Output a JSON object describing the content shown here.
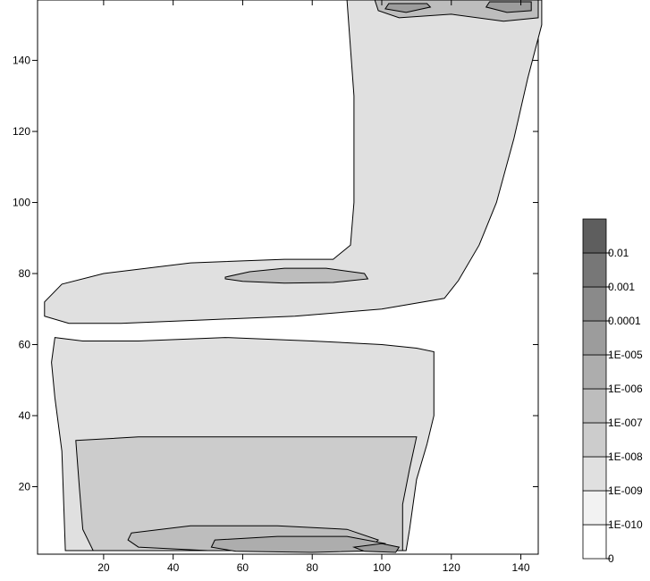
{
  "chart_data": {
    "type": "heatmap",
    "subtype": "filled-contour",
    "title": "",
    "xlabel": "",
    "ylabel": "",
    "xlim": [
      1,
      145
    ],
    "ylim": [
      1,
      157
    ],
    "x_ticks": [
      20,
      40,
      60,
      80,
      100,
      120,
      140
    ],
    "x_tick_labels": [
      "20",
      "40",
      "60",
      "80",
      "100",
      "120",
      "140"
    ],
    "y_ticks": [
      20,
      40,
      60,
      80,
      100,
      120,
      140
    ],
    "y_tick_labels": [
      "20",
      "40",
      "60",
      "80",
      "100",
      "120",
      "140"
    ],
    "colorbar": {
      "levels": [
        "0",
        "1E-010",
        "1E-009",
        "1E-008",
        "1E-007",
        "1E-006",
        "1E-005",
        "0.0001",
        "0.001",
        "0.01"
      ],
      "colors": [
        "#ffffff",
        "#f2f2f2",
        "#e0e0e0",
        "#cccccc",
        "#bdbdbd",
        "#adadad",
        "#9c9c9c",
        "#8a8a8a",
        "#777777",
        "#5e5e5e"
      ]
    },
    "regions": [
      {
        "name": "upper-right-column",
        "level_index": 3,
        "points": [
          [
            93,
            157
          ],
          [
            145,
            157
          ],
          [
            144,
            153
          ],
          [
            140,
            140
          ],
          [
            136,
            122
          ],
          [
            131,
            105
          ],
          [
            126,
            92
          ],
          [
            121,
            83
          ],
          [
            116,
            78
          ],
          [
            108,
            76
          ],
          [
            96,
            75
          ],
          [
            75,
            72
          ],
          [
            50,
            71
          ],
          [
            26,
            70
          ],
          [
            12,
            70
          ],
          [
            7,
            72
          ],
          [
            11,
            76
          ],
          [
            20,
            79
          ],
          [
            40,
            81
          ],
          [
            65,
            82
          ],
          [
            80,
            82
          ],
          [
            89,
            83
          ],
          [
            93,
            87
          ],
          [
            94,
            95
          ],
          [
            95,
            115
          ],
          [
            95,
            140
          ]
        ]
      },
      {
        "name": "upper-light-halo",
        "level_index": 2,
        "points": [
          [
            90,
            157
          ],
          [
            146,
            157
          ],
          [
            146,
            150
          ],
          [
            142,
            135
          ],
          [
            138,
            118
          ],
          [
            133,
            100
          ],
          [
            128,
            88
          ],
          [
            122,
            78
          ],
          [
            118,
            73
          ],
          [
            100,
            70
          ],
          [
            75,
            68
          ],
          [
            50,
            67
          ],
          [
            25,
            66
          ],
          [
            10,
            66
          ],
          [
            3,
            68
          ],
          [
            3,
            72
          ],
          [
            8,
            77
          ],
          [
            20,
            80
          ],
          [
            45,
            83
          ],
          [
            72,
            84
          ],
          [
            86,
            84
          ],
          [
            91,
            88
          ],
          [
            92,
            100
          ],
          [
            92,
            130
          ]
        ]
      },
      {
        "name": "lower-band-light",
        "level_index": 2,
        "points": [
          [
            6,
            62
          ],
          [
            14,
            61
          ],
          [
            30,
            61
          ],
          [
            55,
            62
          ],
          [
            80,
            61
          ],
          [
            100,
            60
          ],
          [
            110,
            59
          ],
          [
            115,
            58
          ],
          [
            115,
            40
          ],
          [
            113,
            32
          ],
          [
            110,
            22
          ],
          [
            108,
            8
          ],
          [
            107,
            2
          ],
          [
            9,
            2
          ],
          [
            8,
            30
          ],
          [
            6,
            45
          ],
          [
            5,
            55
          ]
        ]
      },
      {
        "name": "lower-band-mid",
        "level_index": 3,
        "points": [
          [
            12,
            33
          ],
          [
            30,
            34
          ],
          [
            55,
            34
          ],
          [
            80,
            34
          ],
          [
            100,
            34
          ],
          [
            110,
            34
          ],
          [
            108,
            25
          ],
          [
            106,
            15
          ],
          [
            106,
            2
          ],
          [
            17,
            2
          ],
          [
            14,
            8
          ],
          [
            13,
            20
          ]
        ]
      },
      {
        "name": "lower-inner",
        "level_index": 4,
        "points": [
          [
            28,
            7
          ],
          [
            45,
            9
          ],
          [
            70,
            9
          ],
          [
            90,
            8
          ],
          [
            99,
            5
          ],
          [
            97,
            3
          ],
          [
            85,
            2
          ],
          [
            50,
            2
          ],
          [
            30,
            3
          ],
          [
            27,
            5
          ]
        ]
      },
      {
        "name": "lower-inner-2",
        "level_index": 5,
        "points": [
          [
            52,
            5
          ],
          [
            70,
            6
          ],
          [
            90,
            6
          ],
          [
            101,
            4
          ],
          [
            100,
            2
          ],
          [
            80,
            1.5
          ],
          [
            58,
            1.8
          ],
          [
            51,
            3
          ]
        ]
      },
      {
        "name": "lower-inner-3",
        "level_index": 6,
        "points": [
          [
            92,
            3
          ],
          [
            100,
            4
          ],
          [
            105,
            3
          ],
          [
            104,
            1.5
          ],
          [
            95,
            1.8
          ]
        ]
      },
      {
        "name": "middle-ellipse",
        "level_index": 4,
        "points": [
          [
            55,
            79
          ],
          [
            62,
            80.5
          ],
          [
            72,
            81.5
          ],
          [
            84,
            81.5
          ],
          [
            95,
            80
          ],
          [
            96,
            78.5
          ],
          [
            86,
            77.5
          ],
          [
            72,
            77.3
          ],
          [
            60,
            77.8
          ],
          [
            55,
            78.5
          ]
        ]
      },
      {
        "name": "top-blob",
        "level_index": 4,
        "points": [
          [
            98,
            157
          ],
          [
            145,
            157
          ],
          [
            145,
            152
          ],
          [
            135,
            151
          ],
          [
            120,
            153
          ],
          [
            105,
            152
          ],
          [
            99,
            154
          ]
        ]
      },
      {
        "name": "top-blob-core",
        "level_index": 6,
        "points": [
          [
            102,
            156
          ],
          [
            113,
            156
          ],
          [
            114,
            155
          ],
          [
            107,
            153.5
          ],
          [
            101,
            154.5
          ]
        ]
      },
      {
        "name": "top-blob-core-right",
        "level_index": 6,
        "points": [
          [
            131,
            156.5
          ],
          [
            143,
            156.5
          ],
          [
            143,
            154
          ],
          [
            136,
            153.5
          ],
          [
            130,
            155
          ]
        ]
      }
    ]
  }
}
